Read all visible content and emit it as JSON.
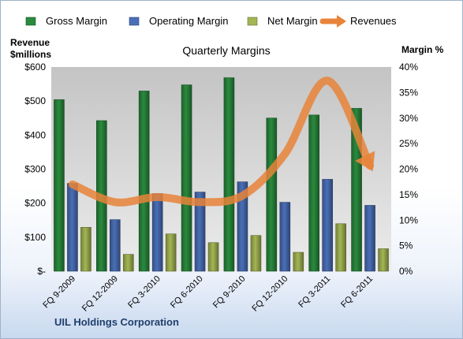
{
  "chart_data": {
    "type": "bar",
    "title": "Quarterly Margins",
    "company": "UIL Holdings Corporation",
    "categories": [
      "FQ 9-2009",
      "FQ 12-2009",
      "FQ 3-2010",
      "FQ 6-2010",
      "FQ 9-2010",
      "FQ 12-2010",
      "FQ 3-2011",
      "FQ 6-2011"
    ],
    "series": [
      {
        "name": "Gross Margin",
        "axis": "right",
        "unit": "%",
        "color": "#2a8a3e",
        "values": [
          33.6,
          29.5,
          35.3,
          36.5,
          37.9,
          30.0,
          30.6,
          31.9
        ]
      },
      {
        "name": "Operating Margin",
        "axis": "right",
        "unit": "%",
        "color": "#4a6fb8",
        "values": [
          17.2,
          10.1,
          15.2,
          15.5,
          17.5,
          13.5,
          18.0,
          12.9
        ]
      },
      {
        "name": "Net Margin",
        "axis": "right",
        "unit": "%",
        "color": "#a3b653",
        "values": [
          8.6,
          3.3,
          7.3,
          5.6,
          7.0,
          3.7,
          9.3,
          4.4
        ]
      },
      {
        "name": "Revenues",
        "axis": "left",
        "unit": "$millions",
        "type": "line",
        "color": "#e8843a",
        "values": [
          255,
          203,
          218,
          203,
          222,
          345,
          560,
          310
        ]
      }
    ],
    "left_axis": {
      "label": "Revenue $millions",
      "ticks": [
        "$-",
        "$100",
        "$200",
        "$300",
        "$400",
        "$500",
        "$600"
      ],
      "range": [
        0,
        600
      ]
    },
    "right_axis": {
      "label": "Margin %",
      "ticks": [
        "0%",
        "5%",
        "10%",
        "15%",
        "20%",
        "25%",
        "30%",
        "35%",
        "40%"
      ],
      "range": [
        0,
        40
      ]
    },
    "legend_position": "top",
    "grid": false
  }
}
